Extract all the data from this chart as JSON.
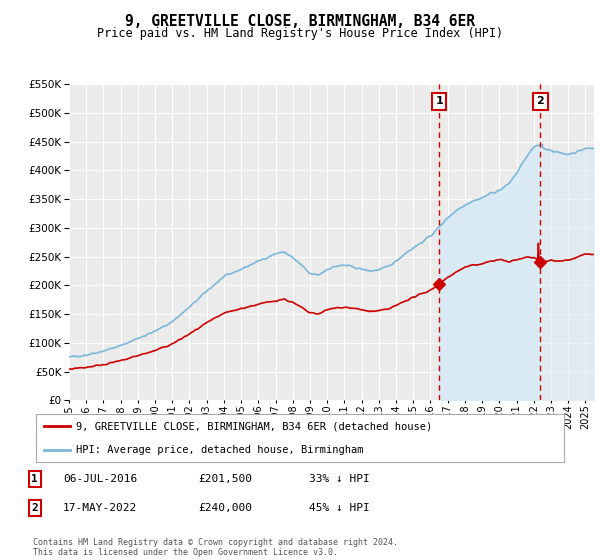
{
  "title": "9, GREETVILLE CLOSE, BIRMINGHAM, B34 6ER",
  "subtitle": "Price paid vs. HM Land Registry's House Price Index (HPI)",
  "legend_line1": "9, GREETVILLE CLOSE, BIRMINGHAM, B34 6ER (detached house)",
  "legend_line2": "HPI: Average price, detached house, Birmingham",
  "sale1_label": "1",
  "sale1_date": "06-JUL-2016",
  "sale1_price": "£201,500",
  "sale1_hpi": "33% ↓ HPI",
  "sale2_label": "2",
  "sale2_date": "17-MAY-2022",
  "sale2_price": "£240,000",
  "sale2_hpi": "45% ↓ HPI",
  "footer": "Contains HM Land Registry data © Crown copyright and database right 2024.\nThis data is licensed under the Open Government Licence v3.0.",
  "hpi_color": "#7ab8d9",
  "hpi_fill_color": "#daeaf5",
  "price_color": "#cc0000",
  "vline_color": "#cc0000",
  "bg_color": "#ffffff",
  "plot_bg_color": "#ebebeb",
  "grid_color": "#ffffff",
  "ylim": [
    0,
    550000
  ],
  "yticks": [
    0,
    50000,
    100000,
    150000,
    200000,
    250000,
    300000,
    350000,
    400000,
    450000,
    500000,
    550000
  ],
  "sale1_year": 2016.5,
  "sale2_year": 2022.38,
  "sale1_price_val": 201500,
  "sale2_price_val": 240000,
  "xmin": 1995.0,
  "xmax": 2025.5
}
